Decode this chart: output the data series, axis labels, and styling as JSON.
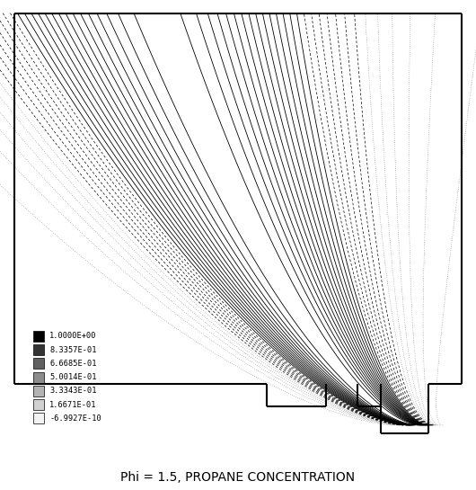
{
  "title": "Phi = 1.5, PROPANE CONCENTRATION",
  "legend_labels": [
    "1.0000E+00",
    "8.3357E-01",
    "6.6685E-01",
    "5.0014E-01",
    "3.3343E-01",
    "1.6671E-01",
    "-6.9927E-10"
  ],
  "background_color": "#ffffff",
  "title_fontsize": 10,
  "n_contours": 28
}
